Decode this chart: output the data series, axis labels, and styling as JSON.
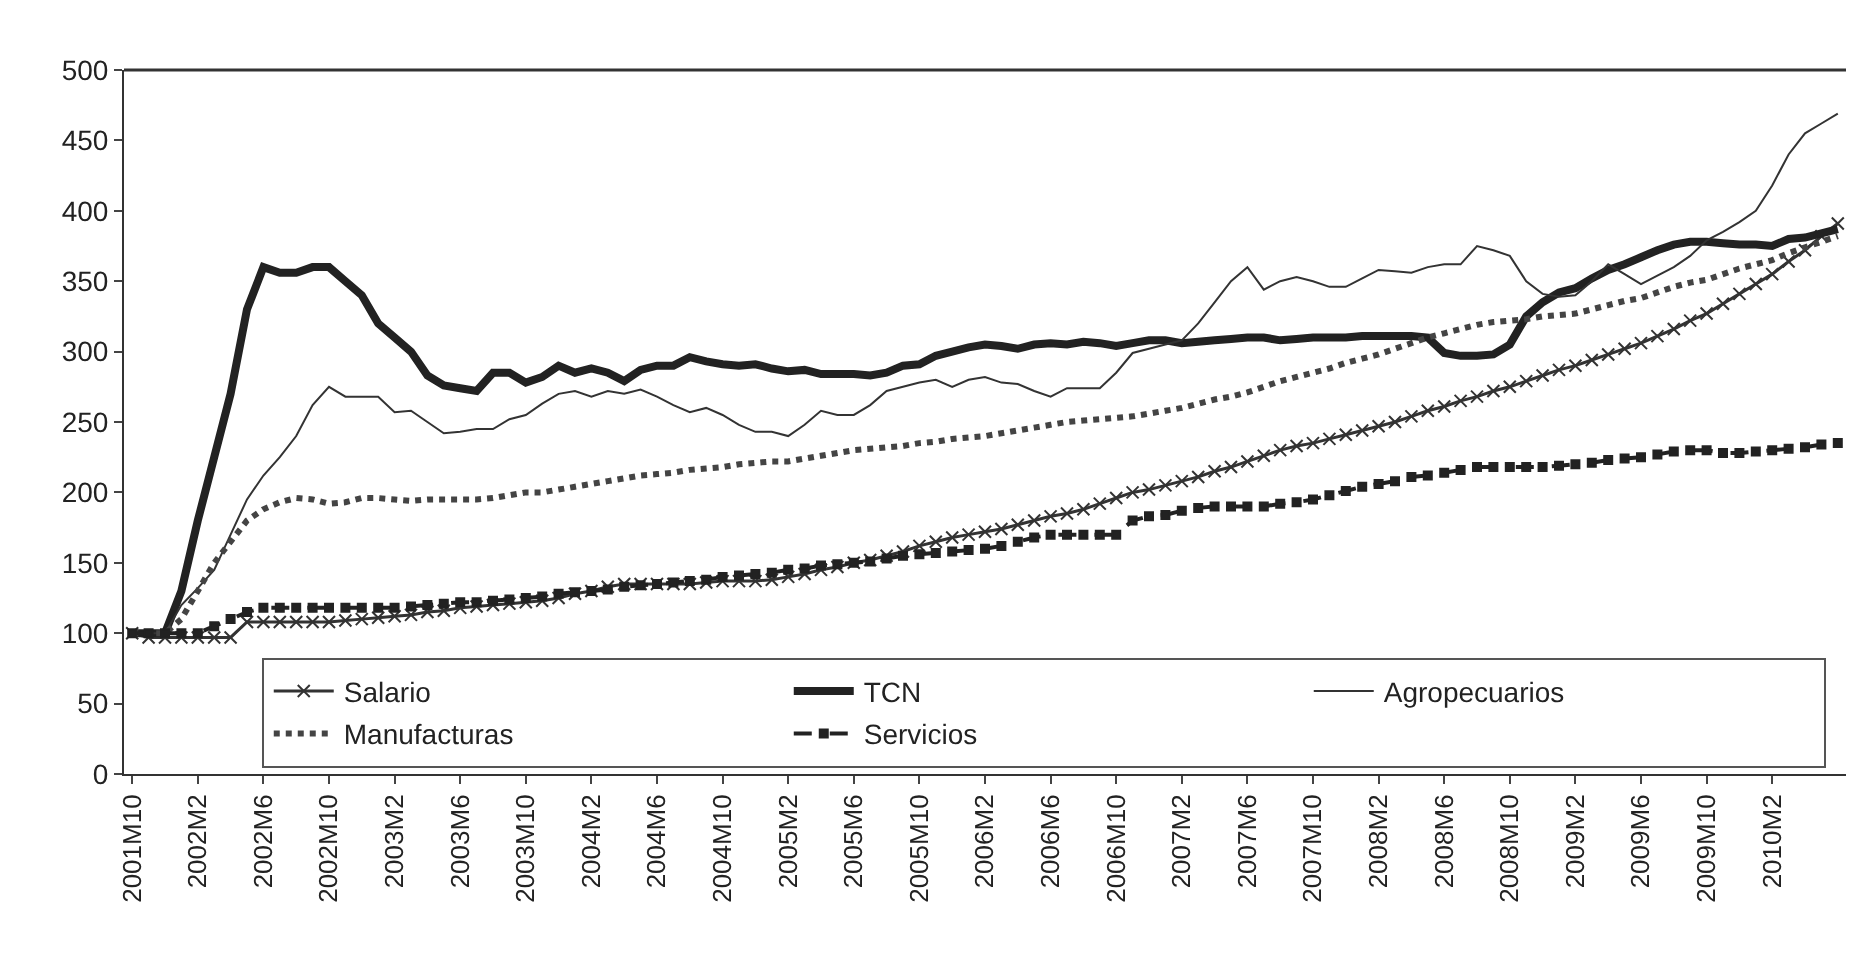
{
  "chart_data": {
    "type": "line",
    "categories": [
      "2001M10",
      null,
      null,
      null,
      "2002M2",
      null,
      null,
      null,
      "2002M6",
      null,
      null,
      null,
      "2002M10",
      null,
      null,
      null,
      "2003M2",
      null,
      null,
      null,
      "2003M6",
      null,
      null,
      null,
      "2003M10",
      null,
      null,
      null,
      "2004M2",
      null,
      null,
      null,
      "2004M6",
      null,
      null,
      null,
      "2004M10",
      null,
      null,
      null,
      "2005M2",
      null,
      null,
      null,
      "2005M6",
      null,
      null,
      null,
      "2005M10",
      null,
      null,
      null,
      "2006M2",
      null,
      null,
      null,
      "2006M6",
      null,
      null,
      null,
      "2006M10",
      null,
      null,
      null,
      "2007M2",
      null,
      null,
      null,
      "2007M6",
      null,
      null,
      null,
      "2007M10",
      null,
      null,
      null,
      "2008M2",
      null,
      null,
      null,
      "2008M6",
      null,
      null,
      null,
      "2008M10",
      null,
      null,
      null,
      "2009M2",
      null,
      null,
      null,
      "2009M6",
      null,
      null,
      null,
      "2009M10",
      null,
      null,
      null,
      "2010M2",
      null,
      null,
      null,
      null
    ],
    "ylim": [
      0,
      500
    ],
    "yticks": [
      0,
      50,
      100,
      150,
      200,
      250,
      300,
      350,
      400,
      450,
      500
    ],
    "legend": "bottom",
    "series": [
      {
        "name": "Salario",
        "color": "#333333",
        "marker": "cross",
        "line_style": "solid",
        "values": [
          100,
          97,
          97,
          97,
          97,
          97,
          97,
          108,
          108,
          108,
          108,
          108,
          108,
          109,
          110,
          111,
          112,
          113,
          115,
          116,
          118,
          119,
          120,
          121,
          122,
          123,
          125,
          128,
          130,
          133,
          135,
          135,
          135,
          135,
          135,
          136,
          137,
          137,
          137,
          138,
          140,
          142,
          145,
          147,
          150,
          152,
          155,
          158,
          162,
          165,
          168,
          170,
          172,
          174,
          177,
          180,
          183,
          185,
          188,
          192,
          196,
          200,
          202,
          205,
          208,
          211,
          215,
          218,
          222,
          226,
          230,
          233,
          235,
          238,
          241,
          244,
          247,
          250,
          254,
          258,
          261,
          265,
          268,
          272,
          275,
          279,
          283,
          287,
          290,
          294,
          298,
          302,
          306,
          311,
          316,
          322,
          327,
          334,
          341,
          348,
          355,
          364,
          372,
          382,
          391
        ]
      },
      {
        "name": "TCN",
        "color": "#222222",
        "marker": "none",
        "line_style": "solid",
        "values": [
          100,
          100,
          100,
          130,
          180,
          225,
          270,
          330,
          360,
          356,
          356,
          360,
          360,
          350,
          340,
          320,
          310,
          300,
          283,
          276,
          274,
          272,
          285,
          285,
          278,
          282,
          290,
          285,
          288,
          285,
          279,
          287,
          290,
          290,
          296,
          293,
          291,
          290,
          291,
          288,
          286,
          287,
          284,
          284,
          284,
          283,
          285,
          290,
          291,
          297,
          300,
          303,
          305,
          304,
          302,
          305,
          306,
          305,
          307,
          306,
          304,
          306,
          308,
          308,
          306,
          307,
          308,
          309,
          310,
          310,
          308,
          309,
          310,
          310,
          310,
          311,
          311,
          311,
          311,
          310,
          299,
          297,
          297,
          298,
          305,
          325,
          335,
          342,
          345,
          352,
          358,
          362,
          367,
          372,
          376,
          378,
          378,
          377,
          376,
          376,
          375,
          380,
          381,
          384,
          387
        ]
      },
      {
        "name": "Agropecuarios",
        "color": "#333333",
        "marker": "none",
        "line_style": "solid",
        "values": [
          100,
          100,
          100,
          120,
          132,
          145,
          170,
          195,
          212,
          225,
          240,
          262,
          275,
          268,
          268,
          268,
          257,
          258,
          250,
          242,
          243,
          245,
          245,
          252,
          255,
          263,
          270,
          272,
          268,
          272,
          270,
          273,
          268,
          262,
          257,
          260,
          255,
          248,
          243,
          243,
          240,
          248,
          258,
          255,
          255,
          262,
          272,
          275,
          278,
          280,
          275,
          280,
          282,
          278,
          277,
          272,
          268,
          274,
          274,
          274,
          285,
          299,
          302,
          305,
          308,
          320,
          335,
          350,
          360,
          344,
          350,
          353,
          350,
          346,
          346,
          352,
          358,
          357,
          356,
          360,
          362,
          362,
          375,
          372,
          368,
          350,
          341,
          339,
          340,
          350,
          362,
          355,
          348,
          354,
          360,
          368,
          379,
          385,
          392,
          400,
          418,
          440,
          455,
          462,
          469
        ]
      },
      {
        "name": "Manufacturas",
        "color": "#444444",
        "marker": "none",
        "line_style": "dotted",
        "values": [
          100,
          100,
          100,
          110,
          130,
          150,
          165,
          180,
          188,
          193,
          196,
          195,
          192,
          193,
          196,
          196,
          195,
          194,
          195,
          195,
          195,
          195,
          196,
          198,
          200,
          200,
          202,
          204,
          206,
          208,
          210,
          212,
          213,
          214,
          216,
          217,
          218,
          220,
          221,
          222,
          222,
          224,
          226,
          228,
          230,
          231,
          232,
          233,
          235,
          236,
          238,
          239,
          240,
          242,
          244,
          246,
          248,
          250,
          251,
          252,
          253,
          254,
          256,
          258,
          260,
          263,
          266,
          268,
          271,
          275,
          279,
          282,
          285,
          288,
          292,
          295,
          298,
          302,
          306,
          310,
          313,
          316,
          319,
          321,
          322,
          323,
          325,
          326,
          327,
          330,
          333,
          336,
          338,
          342,
          346,
          349,
          351,
          355,
          359,
          362,
          365,
          370,
          374,
          378,
          382
        ]
      },
      {
        "name": "Servicios",
        "color": "#222222",
        "marker": "square",
        "line_style": "dashed",
        "values": [
          100,
          100,
          100,
          100,
          100,
          105,
          110,
          115,
          118,
          118,
          118,
          118,
          118,
          118,
          118,
          118,
          118,
          119,
          120,
          121,
          122,
          122,
          123,
          124,
          125,
          126,
          128,
          129,
          130,
          131,
          133,
          134,
          135,
          136,
          137,
          138,
          140,
          141,
          142,
          143,
          145,
          146,
          148,
          149,
          150,
          151,
          153,
          155,
          156,
          157,
          158,
          159,
          160,
          162,
          165,
          168,
          170,
          170,
          170,
          170,
          170,
          180,
          183,
          184,
          187,
          189,
          190,
          190,
          190,
          190,
          192,
          193,
          195,
          198,
          201,
          204,
          206,
          208,
          211,
          212,
          214,
          216,
          218,
          218,
          218,
          218,
          218,
          219,
          220,
          221,
          223,
          224,
          225,
          227,
          229,
          230,
          230,
          228,
          228,
          229,
          230,
          231,
          232,
          234,
          235
        ]
      }
    ]
  }
}
